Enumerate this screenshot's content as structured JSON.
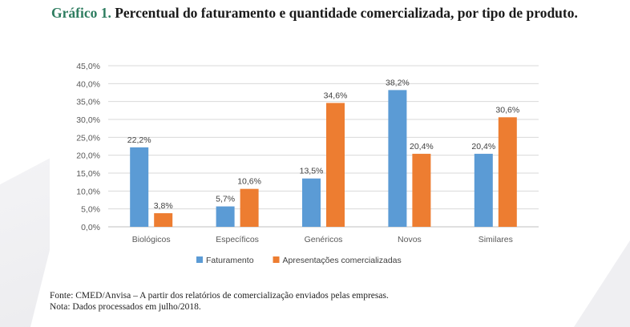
{
  "figure": {
    "label": "Gráfico 1.",
    "title": "Percentual do faturamento e quantidade comercializada, por tipo de produto."
  },
  "notes": {
    "source": "Fonte: CMED/Anvisa – A partir dos relatórios de comercialização enviados pelas empresas.",
    "note": "Nota: Dados processados em julho/2018."
  },
  "chart_data": {
    "type": "bar",
    "categories": [
      "Biológicos",
      "Específicos",
      "Genéricos",
      "Novos",
      "Similares"
    ],
    "series": [
      {
        "name": "Faturamento",
        "color": "#5b9bd5",
        "values": [
          22.2,
          5.7,
          13.5,
          38.2,
          20.4
        ],
        "labels": [
          "22,2%",
          "5,7%",
          "13,5%",
          "38,2%",
          "20,4%"
        ]
      },
      {
        "name": "Apresentações comercializadas",
        "color": "#ed7d31",
        "values": [
          3.8,
          10.6,
          34.6,
          20.4,
          30.6
        ],
        "labels": [
          "3,8%",
          "10,6%",
          "34,6%",
          "20,4%",
          "30,6%"
        ]
      }
    ],
    "ylim": [
      0,
      45
    ],
    "yticks": [
      0,
      5,
      10,
      15,
      20,
      25,
      30,
      35,
      40,
      45
    ],
    "ytick_labels": [
      "0,0%",
      "5,0%",
      "10,0%",
      "15,0%",
      "20,0%",
      "25,0%",
      "30,0%",
      "35,0%",
      "40,0%",
      "45,0%"
    ],
    "grid": true,
    "legend_position": "bottom"
  }
}
